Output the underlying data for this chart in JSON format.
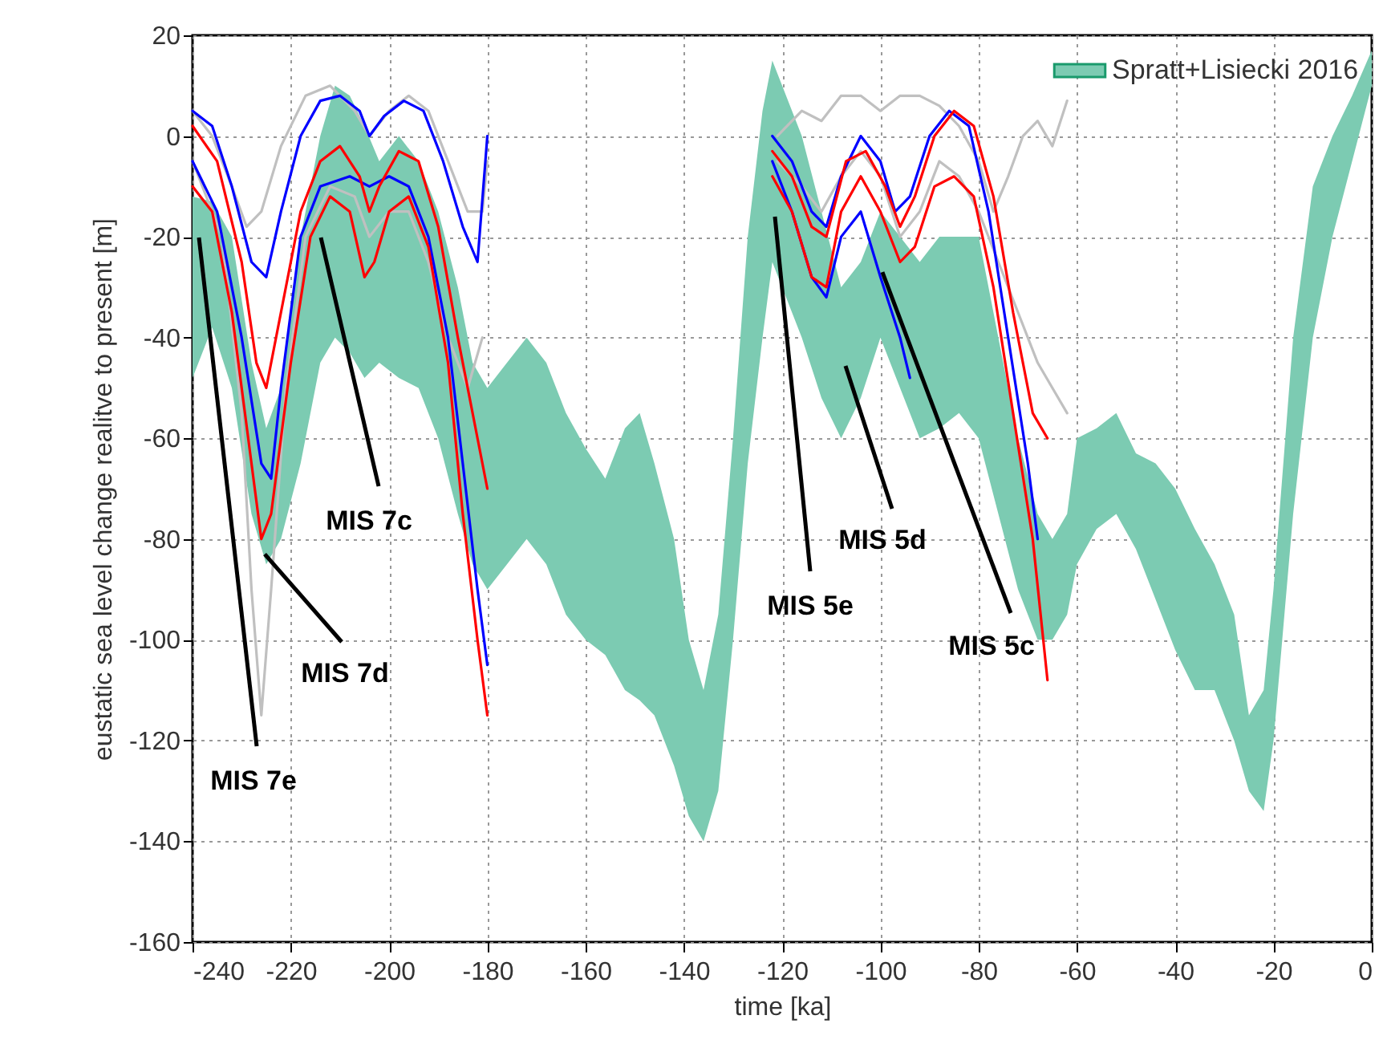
{
  "chart_data": {
    "type": "line",
    "xlabel": "time [ka]",
    "ylabel": "eustatic sea level change realitve to present [m]",
    "xlim": [
      -240,
      0
    ],
    "xticks": [
      -240,
      -220,
      -200,
      -180,
      -160,
      -140,
      -120,
      -100,
      -80,
      -60,
      -40,
      -20,
      0
    ],
    "ylim": [
      -160,
      20
    ],
    "yticks": [
      -160,
      -140,
      -120,
      -100,
      -80,
      -60,
      -40,
      -20,
      0,
      20
    ],
    "grid": true,
    "legend": "top right",
    "annotations": [
      "MIS 7e",
      {
        "text": "MIS 7d",
        "x": -225.3,
        "y": -83
      },
      "MIS 7c",
      "MIS 5e",
      "MIS 5d",
      {
        "text": "MIS 5c",
        "x": -99.6,
        "y": -27
      }
    ],
    "series": [
      {
        "name": "Spratt+Lisiecki 2016",
        "type": "area",
        "color": "#7ccbb2",
        "x": [
          -240,
          -236,
          -232,
          -228,
          -225,
          -222,
          -218,
          -214,
          -211,
          -208,
          -205,
          -202,
          -198,
          -194,
          -190,
          -186,
          -183,
          -180,
          -176,
          -172,
          -168,
          -164,
          -160,
          -156,
          -152,
          -149,
          -146,
          -142,
          -139,
          -136,
          -133,
          -130,
          -127,
          -124,
          -122,
          -120,
          -116,
          -112,
          -108,
          -104,
          -100,
          -96,
          -92,
          -88,
          -84,
          -80,
          -76,
          -72,
          -68,
          -65,
          -62,
          -60,
          -56,
          -52,
          -48,
          -44,
          -40,
          -36,
          -32,
          -28,
          -25,
          -22,
          -20,
          -16,
          -12,
          -8,
          -4,
          0
        ],
        "values": [
          null,
          null,
          null,
          null,
          null,
          null,
          null,
          null,
          null,
          null,
          null,
          null,
          null,
          null,
          null,
          null,
          null,
          null,
          null,
          null,
          null,
          null,
          null,
          null,
          null,
          null,
          null,
          null,
          null,
          null,
          null,
          null,
          null,
          null,
          null,
          null,
          null,
          null,
          null,
          null,
          null,
          null,
          null,
          null,
          null,
          null,
          null,
          null,
          null,
          null,
          null,
          null,
          null,
          null,
          null,
          null,
          null,
          null,
          null,
          null,
          null,
          null,
          null,
          null,
          null,
          null,
          null,
          null
        ],
        "upper": [
          -12,
          -13,
          -20,
          -45,
          -58,
          -50,
          -20,
          0,
          10,
          8,
          2,
          -5,
          0,
          -5,
          -15,
          -30,
          -45,
          -50,
          -45,
          -40,
          -45,
          -55,
          -62,
          -68,
          -58,
          -55,
          -65,
          -80,
          -100,
          -110,
          -95,
          -60,
          -20,
          5,
          15,
          10,
          0,
          -15,
          -30,
          -25,
          -15,
          -20,
          -25,
          -20,
          -20,
          -20,
          -40,
          -60,
          -75,
          -80,
          -75,
          -60,
          -58,
          -55,
          -63,
          -65,
          -70,
          -78,
          -85,
          -95,
          -115,
          -110,
          -90,
          -40,
          -10,
          0,
          8,
          17
        ],
        "lower": [
          -48,
          -38,
          -50,
          -75,
          -85,
          -80,
          -65,
          -45,
          -40,
          -43,
          -48,
          -45,
          -48,
          -50,
          -60,
          -75,
          -85,
          -90,
          -85,
          -80,
          -85,
          -95,
          -100,
          -103,
          -110,
          -112,
          -115,
          -125,
          -135,
          -140,
          -130,
          -100,
          -65,
          -40,
          -25,
          -30,
          -40,
          -52,
          -60,
          -52,
          -40,
          -50,
          -60,
          -58,
          -55,
          -60,
          -75,
          -90,
          -100,
          -100,
          -95,
          -85,
          -78,
          -75,
          -82,
          -92,
          -102,
          -110,
          -110,
          -120,
          -130,
          -134,
          -120,
          -75,
          -40,
          -20,
          -5,
          10
        ]
      },
      {
        "color": "#c0c0c0",
        "x": [
          -240,
          -236,
          -232,
          -229,
          -226,
          -222,
          -217,
          -212,
          -207,
          -204,
          -200,
          -196,
          -192,
          -188,
          -184,
          -181,
          -180
        ],
        "values": [
          5,
          0,
          -10,
          -18,
          -15,
          -2,
          8,
          10,
          5,
          0,
          5,
          8,
          5,
          -5,
          -15,
          -15,
          -5
        ]
      },
      {
        "color": "#c0c0c0",
        "x": [
          -240,
          -234,
          -230,
          -228,
          -226,
          -224,
          -221,
          -217,
          -212,
          -207,
          -204,
          -200,
          -196,
          -192,
          -188,
          -184,
          -181
        ],
        "values": [
          -5,
          -20,
          -55,
          -90,
          -115,
          -90,
          -50,
          -20,
          -10,
          -12,
          -20,
          -15,
          -15,
          -25,
          -40,
          -50,
          -40
        ]
      },
      {
        "color": "#c0c0c0",
        "x": [
          -121,
          -116,
          -112,
          -108,
          -104,
          -100,
          -96,
          -92,
          -88,
          -84,
          -80,
          -77,
          -74,
          -71,
          -68,
          -65,
          -62
        ],
        "values": [
          0,
          5,
          3,
          8,
          8,
          5,
          8,
          8,
          6,
          2,
          -5,
          -15,
          -8,
          0,
          3,
          -2,
          7
        ]
      },
      {
        "color": "#c0c0c0",
        "x": [
          -121,
          -116,
          -112,
          -108,
          -104,
          -100,
          -96,
          -92,
          -88,
          -84,
          -80,
          -76,
          -72,
          -68,
          -65,
          -62
        ],
        "values": [
          -5,
          -10,
          -15,
          -8,
          -3,
          -8,
          -20,
          -15,
          -5,
          -8,
          -15,
          -25,
          -35,
          -45,
          -50,
          -55
        ]
      },
      {
        "color": "#0000ff",
        "x": [
          -240,
          -236,
          -232,
          -228,
          -225,
          -222,
          -218,
          -214,
          -210,
          -206,
          -204,
          -201,
          -197,
          -193,
          -189,
          -185,
          -182,
          -180
        ],
        "values": [
          5,
          2,
          -10,
          -25,
          -28,
          -15,
          0,
          7,
          8,
          5,
          0,
          4,
          7,
          5,
          -5,
          -18,
          -25,
          0
        ]
      },
      {
        "color": "#0000ff",
        "x": [
          -240,
          -235,
          -230,
          -226,
          -224,
          -222,
          -218,
          -214,
          -208,
          -204,
          -200,
          -196,
          -192,
          -188,
          -185,
          -182,
          -180
        ],
        "values": [
          -5,
          -15,
          -40,
          -65,
          -68,
          -50,
          -20,
          -10,
          -8,
          -10,
          -8,
          -10,
          -20,
          -40,
          -65,
          -90,
          -105
        ]
      },
      {
        "color": "#0000ff",
        "x": [
          -122,
          -118,
          -114,
          -111,
          -108,
          -104,
          -100,
          -97,
          -94,
          -90,
          -86,
          -82,
          -78,
          -74,
          -70,
          -68
        ],
        "values": [
          0,
          -5,
          -15,
          -18,
          -8,
          0,
          -5,
          -15,
          -12,
          0,
          5,
          2,
          -15,
          -40,
          -65,
          -80
        ]
      },
      {
        "color": "#0000ff",
        "x": [
          -122,
          -118,
          -114,
          -111,
          -108,
          -104,
          -100,
          -96,
          -94
        ],
        "values": [
          -5,
          -15,
          -28,
          -32,
          -20,
          -15,
          -28,
          -40,
          -48
        ]
      },
      {
        "color": "#ff0000",
        "x": [
          -240,
          -235,
          -230,
          -227,
          -225,
          -222,
          -218,
          -214,
          -210,
          -206,
          -204,
          -202,
          -198,
          -194,
          -190,
          -186,
          -182,
          -180
        ],
        "values": [
          2,
          -5,
          -25,
          -45,
          -50,
          -35,
          -15,
          -5,
          -2,
          -8,
          -15,
          -10,
          -3,
          -5,
          -18,
          -40,
          -60,
          -70
        ]
      },
      {
        "color": "#ff0000",
        "x": [
          -240,
          -236,
          -232,
          -228,
          -226,
          -224,
          -220,
          -216,
          -212,
          -208,
          -205,
          -203,
          -200,
          -196,
          -192,
          -188,
          -185,
          -182,
          -180
        ],
        "values": [
          -10,
          -15,
          -35,
          -65,
          -80,
          -75,
          -45,
          -20,
          -12,
          -15,
          -28,
          -25,
          -15,
          -12,
          -22,
          -45,
          -75,
          -100,
          -115
        ]
      },
      {
        "color": "#ff0000",
        "x": [
          -122,
          -118,
          -114,
          -111,
          -107,
          -103,
          -99,
          -96,
          -93,
          -89,
          -85,
          -81,
          -77,
          -73,
          -69,
          -66
        ],
        "values": [
          -3,
          -8,
          -18,
          -20,
          -5,
          -3,
          -10,
          -18,
          -12,
          0,
          5,
          2,
          -12,
          -35,
          -55,
          -60
        ]
      },
      {
        "color": "#ff0000",
        "x": [
          -122,
          -118,
          -114,
          -111,
          -108,
          -104,
          -100,
          -96,
          -93,
          -89,
          -85,
          -81,
          -77,
          -73,
          -69,
          -66
        ],
        "values": [
          -8,
          -15,
          -28,
          -30,
          -15,
          -8,
          -15,
          -25,
          -22,
          -10,
          -8,
          -12,
          -30,
          -55,
          -80,
          -108
        ]
      }
    ]
  }
}
